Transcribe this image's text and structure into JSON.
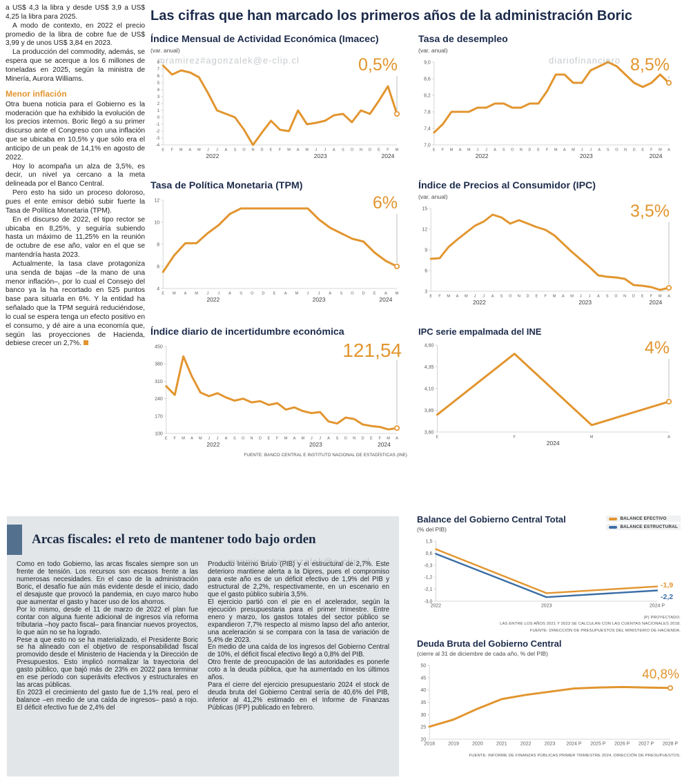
{
  "page": {
    "main_title": "Las cifras que han marcado los primeros años de la administración Boric",
    "source_top": "FUENTE: BANCO CENTRAL E INSTITUTO NACIONAL DE ESTADÍSTICAS (INE)",
    "watermarks": {
      "wm_left": "mramirez#agonzalek@e-clip.cl",
      "wm_right": "diariofinanciero",
      "wm_bottom": "mramirez#agonzalek@e-clip.cl"
    },
    "colors": {
      "accent_orange": "#E2952F",
      "line_blue": "#3A6EA5",
      "title_navy": "#1C2B4B"
    }
  },
  "left_article": {
    "paragraphs": [
      "a US$ 4,3 la libra y desde US$ 3,9 a US$ 4,25 la libra para 2025.",
      "A modo de contexto, en 2022 el precio promedio de la libra de cobre fue de US$ 3,99 y de unos US$ 3,84 en 2023.",
      "La producción del commodity, además, se espera que se acerque a los 6 millones de toneladas en 2025, según la ministra de Minería, Aurora Williams."
    ],
    "subhead": "Menor inflación",
    "paragraphs2": [
      "Otra buena noticia para el Gobierno es la moderación que ha exhibido la evolución de los precios internos. Boric llegó a su primer discurso ante el Congreso con una inflación que se ubicaba en 10,5% y que sólo era el anticipo de un peak de 14,1% en agosto de 2022.",
      "Hoy lo acompaña un alza de 3,5%, es decir, un nivel ya cercano a la meta delineada por el Banco Central.",
      "Pero esto ha sido un proceso doloroso, pues el ente emisor debió subir fuerte la Tasa de Política Monetaria (TPM).",
      "En el discurso de 2022, el tipo rector se ubicaba en 8,25%, y seguiría subiendo hasta un máximo de 11,25% en la reunión de octubre de ese año, valor en el que se mantendría hasta 2023.",
      "Actualmente, la tasa clave protagoniza una senda de bajas –de la mano de una menor inflación–, por lo cual el Consejo del banco ya la ha recortado en 525 puntos base para situarla en 6%. Y la entidad ha señalado que la TPM seguirá reduciéndose, lo cual se espera tenga un efecto positivo en el consumo, y dé aire a una economía que, según las proyecciones de Hacienda, debiese crecer un 2,7%."
    ]
  },
  "fiscal_section": {
    "title": "Arcas fiscales: el reto de mantener todo bajo orden",
    "col1": [
      "Como en todo Gobierno, las arcas fiscales siempre son un frente de tensión. Los recursos son escasos frente a las numerosas necesidades. En el caso de la administración Boric, el desafío fue aún más evidente desde el inicio, dado el desajuste que provocó la pandemia, en cuyo marco hubo que aumentar el gasto y hacer uso de los ahorros.",
      "Por lo mismo, desde el 11 de marzo de 2022 el plan fue contar con alguna fuente adicional de ingresos vía reforma tributaria –hoy pacto fiscal– para financiar nuevos proyectos, lo que aún no se ha logrado.",
      "Pese a que esto no se ha materializado, el Presidente Boric se ha alineado con el objetivo de responsabilidad fiscal promovido desde el Ministerio de Hacienda y la Dirección de Presupuestos. Esto implicó normalizar la trayectoria del gasto público, que bajó más de 23% en 2022 para terminar en ese período con superávits efectivos y estructurales en las arcas públicas.",
      "En 2023 el crecimiento del gasto fue de 1,1% real, pero el balance –en medio de una caída de ingresos– pasó a rojo. El déficit efectivo fue de 2,4% del"
    ],
    "col2": [
      "Producto Interno Bruto (PIB) y el estructural de 2,7%. Este deterioro mantiene alerta a la Dipres, pues el compromiso para este año es de un déficit efectivo de 1,9% del PIB y estructural de 2,2%, respectivamente, en un escenario en que el gasto público subiría 3,5%.",
      "El ejercicio partió con el pie en el acelerador, según la ejecución presupuestaria para el primer trimestre. Entre enero y marzo, los gastos totales del sector público se expandieron 7,7% respecto al mismo lapso del año anterior, una aceleración si se compara con la tasa de variación de 5,4% de 2023.",
      "En medio de una caída de los ingresos del Gobierno Central de 10%, el déficit fiscal efectivo llegó a 0,8% del PIB.",
      "Otro frente de preocupación de las autoridades es ponerle coto a la deuda pública, que ha aumentado en los últimos años.",
      "Para el cierre del ejercicio presupuestario 2024 el stock de deuda bruta del Gobierno Central sería de 40,6% del PIB, inferior al 41,2% estimado en el Informe de Finanzas Públicas (IFP) publicado en febrero."
    ]
  },
  "chart_data": [
    {
      "type": "line",
      "title": "Índice Mensual de Actividad Económica (Imacec)",
      "subtitle": "(var. anual)",
      "big_label": "0,5%",
      "ylim": [
        -4,
        8
      ],
      "yticks": [
        {
          "v": 8,
          "t": "8"
        },
        {
          "v": 7,
          "t": "7"
        },
        {
          "v": 6,
          "t": "6"
        },
        {
          "v": 5,
          "t": "5"
        },
        {
          "v": 4,
          "t": "4"
        },
        {
          "v": 3,
          "t": "3"
        },
        {
          "v": 2,
          "t": "2"
        },
        {
          "v": 1,
          "t": "1"
        },
        {
          "v": 0,
          "t": "0"
        },
        {
          "v": -1,
          "t": "-1"
        },
        {
          "v": -2,
          "t": "-2"
        },
        {
          "v": -3,
          "t": "-3"
        },
        {
          "v": -4,
          "t": "-4"
        }
      ],
      "x_labels": [
        "E",
        "F",
        "M",
        "A",
        "M",
        "J",
        "J",
        "A",
        "S",
        "O",
        "N",
        "D",
        "E",
        "F",
        "M",
        "A",
        "M",
        "J",
        "J",
        "A",
        "S",
        "O",
        "N",
        "D",
        "E",
        "F",
        "M"
      ],
      "year_labels": [
        {
          "label": "2022",
          "span": [
            0,
            11
          ]
        },
        {
          "label": "2023",
          "span": [
            12,
            23
          ]
        },
        {
          "label": "2024",
          "span": [
            24,
            26
          ]
        }
      ],
      "end_marker": true,
      "series": [
        {
          "name": "Imacec",
          "color": "#E2952F",
          "values": [
            7.5,
            6.2,
            6.8,
            6.5,
            5.8,
            3.5,
            1.0,
            0.5,
            0.0,
            -1.8,
            -4.0,
            -2.2,
            -0.5,
            -1.8,
            -2.0,
            1.0,
            -1.0,
            -0.8,
            -0.5,
            0.3,
            0.5,
            -0.7,
            1.0,
            0.5,
            2.4,
            4.5,
            0.5
          ]
        }
      ]
    },
    {
      "type": "line",
      "title": "Tasa de desempleo",
      "subtitle": "(var. anual)",
      "big_label": "8,5%",
      "ylim": [
        7.0,
        9.0
      ],
      "yticks": [
        {
          "v": 9.0,
          "t": "9,0"
        },
        {
          "v": 8.6,
          "t": "8,6"
        },
        {
          "v": 8.2,
          "t": "8,2"
        },
        {
          "v": 7.8,
          "t": "7,8"
        },
        {
          "v": 7.4,
          "t": "7,4"
        },
        {
          "v": 7.0,
          "t": "7,0"
        }
      ],
      "x_labels": [
        "E",
        "F",
        "M",
        "A",
        "M",
        "J",
        "J",
        "A",
        "S",
        "O",
        "N",
        "D",
        "E",
        "F",
        "M",
        "A",
        "M",
        "J",
        "J",
        "A",
        "S",
        "O",
        "N",
        "D",
        "E",
        "F",
        "M",
        "A"
      ],
      "year_labels": [
        {
          "label": "2022",
          "span": [
            0,
            11
          ]
        },
        {
          "label": "2023",
          "span": [
            12,
            23
          ]
        },
        {
          "label": "2024",
          "span": [
            24,
            27
          ]
        }
      ],
      "end_marker": true,
      "series": [
        {
          "name": "Tasa de desempleo",
          "color": "#E2952F",
          "values": [
            7.3,
            7.5,
            7.8,
            7.8,
            7.8,
            7.9,
            7.9,
            8.0,
            8.0,
            7.9,
            7.9,
            8.0,
            8.0,
            8.3,
            8.7,
            8.7,
            8.5,
            8.5,
            8.8,
            8.9,
            9.0,
            8.9,
            8.7,
            8.5,
            8.4,
            8.5,
            8.7,
            8.5
          ]
        }
      ]
    },
    {
      "type": "line",
      "title": "Tasa de Política Monetaria (TPM)",
      "subtitle": "",
      "big_label": "6%",
      "ylim": [
        4,
        12
      ],
      "yticks": [
        {
          "v": 12,
          "t": "12"
        },
        {
          "v": 10,
          "t": "10"
        },
        {
          "v": 8,
          "t": "8"
        },
        {
          "v": 6,
          "t": "6"
        },
        {
          "v": 4,
          "t": "4"
        }
      ],
      "x_labels": [
        "E",
        "M",
        "A",
        "M",
        "J",
        "J",
        "A",
        "S",
        "O",
        "D",
        "E",
        "A",
        "M",
        "J",
        "J",
        "A",
        "S",
        "O",
        "D",
        "E",
        "A",
        "M"
      ],
      "year_labels": [
        {
          "label": "2022",
          "span": [
            0,
            9
          ]
        },
        {
          "label": "2023",
          "span": [
            10,
            18
          ]
        },
        {
          "label": "2024",
          "span": [
            19,
            21
          ]
        }
      ],
      "end_marker": true,
      "series": [
        {
          "name": "TPM",
          "color": "#E2952F",
          "values": [
            5.5,
            7.0,
            8.1,
            8.1,
            9.0,
            9.75,
            10.75,
            11.25,
            11.25,
            11.25,
            11.25,
            11.25,
            11.25,
            11.25,
            10.25,
            9.5,
            9.0,
            8.5,
            8.25,
            7.25,
            6.5,
            6.0
          ]
        }
      ]
    },
    {
      "type": "line",
      "title": "Índice de Precios al Consumidor (IPC)",
      "subtitle": "(var. anual)",
      "big_label": "3,5%",
      "ylim": [
        3,
        15
      ],
      "yticks": [
        {
          "v": 15,
          "t": "15"
        },
        {
          "v": 12,
          "t": "12"
        },
        {
          "v": 9,
          "t": "9"
        },
        {
          "v": 6,
          "t": "6"
        },
        {
          "v": 3,
          "t": "3"
        }
      ],
      "x_labels": [
        "E",
        "F",
        "M",
        "A",
        "M",
        "J",
        "J",
        "A",
        "S",
        "O",
        "N",
        "D",
        "E",
        "F",
        "M",
        "A",
        "M",
        "J",
        "J",
        "A",
        "S",
        "O",
        "N",
        "D",
        "E",
        "F",
        "M",
        "A"
      ],
      "year_labels": [
        {
          "label": "2022",
          "span": [
            0,
            11
          ]
        },
        {
          "label": "2023",
          "span": [
            12,
            23
          ]
        },
        {
          "label": "2024",
          "span": [
            24,
            27
          ]
        }
      ],
      "end_marker": true,
      "series": [
        {
          "name": "IPC",
          "color": "#E2952F",
          "values": [
            7.7,
            7.8,
            9.4,
            10.5,
            11.5,
            12.5,
            13.1,
            14.1,
            13.7,
            12.8,
            13.3,
            12.8,
            12.3,
            11.9,
            11.1,
            9.9,
            8.7,
            7.6,
            6.5,
            5.3,
            5.1,
            5.0,
            4.8,
            3.9,
            3.8,
            3.6,
            3.2,
            3.5
          ]
        }
      ]
    },
    {
      "type": "line",
      "title": "Índice diario de incertidumbre económica",
      "subtitle": "",
      "big_label": "121,54",
      "ylim": [
        100,
        450
      ],
      "yticks": [
        {
          "v": 450,
          "t": "450"
        },
        {
          "v": 380,
          "t": "380"
        },
        {
          "v": 310,
          "t": "310"
        },
        {
          "v": 240,
          "t": "240"
        },
        {
          "v": 170,
          "t": "170"
        },
        {
          "v": 100,
          "t": "100"
        }
      ],
      "x_labels": [
        "E",
        "F",
        "M",
        "A",
        "M",
        "J",
        "J",
        "A",
        "S",
        "O",
        "N",
        "D",
        "E",
        "F",
        "M",
        "A",
        "M",
        "J",
        "J",
        "A",
        "S",
        "O",
        "N",
        "D",
        "E",
        "F",
        "M",
        "A"
      ],
      "year_labels": [
        {
          "label": "2022",
          "span": [
            0,
            11
          ]
        },
        {
          "label": "2023",
          "span": [
            12,
            23
          ]
        },
        {
          "label": "2024",
          "span": [
            24,
            27
          ]
        }
      ],
      "end_marker": true,
      "series": [
        {
          "name": "Incertidumbre económica",
          "color": "#E2952F",
          "values": [
            290,
            255,
            410,
            330,
            265,
            250,
            262,
            245,
            232,
            240,
            225,
            230,
            215,
            222,
            196,
            205,
            190,
            182,
            186,
            148,
            140,
            164,
            158,
            136,
            130,
            126,
            116,
            121.54
          ]
        }
      ]
    },
    {
      "type": "line",
      "title": "IPC serie empalmada del INE",
      "subtitle": "",
      "big_label": "4%",
      "ylim": [
        3.6,
        4.6
      ],
      "yticks": [
        {
          "v": 4.6,
          "t": "4,60"
        },
        {
          "v": 4.35,
          "t": "4,35"
        },
        {
          "v": 4.1,
          "t": "4,10"
        },
        {
          "v": 3.85,
          "t": "3,85"
        },
        {
          "v": 3.6,
          "t": "3,60"
        }
      ],
      "x_labels": [
        "E",
        "F",
        "M",
        "A"
      ],
      "year_labels": [
        {
          "label": "2024",
          "span": [
            0,
            3
          ]
        }
      ],
      "end_marker": true,
      "series": [
        {
          "name": "IPC serie empalmada",
          "color": "#E2952F",
          "values": [
            3.8,
            4.5,
            3.68,
            3.95
          ]
        }
      ]
    },
    {
      "type": "line",
      "title": "Balance del Gobierno Central Total",
      "subtitle": "(% del PIB)",
      "ylim": [
        -3.0,
        1.5
      ],
      "yticks": [
        {
          "v": 1.5,
          "t": "1,5"
        },
        {
          "v": 0.6,
          "t": "0,6"
        },
        {
          "v": -0.3,
          "t": "-0,3"
        },
        {
          "v": -1.2,
          "t": "-1,2"
        },
        {
          "v": -2.1,
          "t": "-2,1"
        },
        {
          "v": -3.0,
          "t": "-3,0"
        }
      ],
      "x_labels": [
        "2022",
        "2023",
        "2024 P"
      ],
      "end_marker": false,
      "end_labels": [
        {
          "text": "-1,9",
          "dy": -2
        },
        {
          "text": "-2,2",
          "dy": 9
        }
      ],
      "series": [
        {
          "name": "BALANCE EFECTIVO",
          "color": "#E2952F",
          "width": 2.4,
          "values": [
            0.9,
            -2.4,
            -1.9
          ]
        },
        {
          "name": "BALANCE ESTRUCTURAL",
          "color": "#3A6EA5",
          "width": 2.4,
          "values": [
            0.55,
            -2.7,
            -2.2
          ]
        }
      ],
      "footnotes": [
        "(P) PROYECTADO.",
        "LAS ENTRE LOS AÑOS 2021 Y 2023 SE CALCULAN CON LAS CUENTAS NACIONALES 2018.",
        "FUENTE: DIRECCIÓN DE PRESUPUESTOS DEL MINISTERIO DE HACIENDA."
      ]
    },
    {
      "type": "line",
      "title": "Deuda Bruta del Gobierno Central",
      "subtitle": "(cierre al 31 de diciembre de cada año, % del PIB)",
      "big_label": "40,8%",
      "ylim": [
        20,
        50
      ],
      "yticks": [
        {
          "v": 50,
          "t": "50"
        },
        {
          "v": 45,
          "t": "45"
        },
        {
          "v": 40,
          "t": "40"
        },
        {
          "v": 35,
          "t": "35"
        },
        {
          "v": 30,
          "t": "30"
        },
        {
          "v": 25,
          "t": "25"
        },
        {
          "v": 20,
          "t": "20"
        }
      ],
      "x_labels": [
        "2018",
        "2019",
        "2020",
        "2021",
        "2022",
        "2023",
        "2024 P",
        "2025 P",
        "2026 P",
        "2027 P",
        "2028 P"
      ],
      "end_marker": true,
      "end_line": false,
      "series": [
        {
          "name": "Deuda bruta",
          "color": "#E2952F",
          "values": [
            25.1,
            28.0,
            32.4,
            36.3,
            38.0,
            39.3,
            40.6,
            41.0,
            41.2,
            41.0,
            40.8
          ]
        }
      ],
      "footnote": "FUENTE: INFORME DE FINANZAS PÚBLICAS PRIMER TRIMESTRE 2024, DIRECCIÓN DE PRESUPUESTOS."
    }
  ]
}
